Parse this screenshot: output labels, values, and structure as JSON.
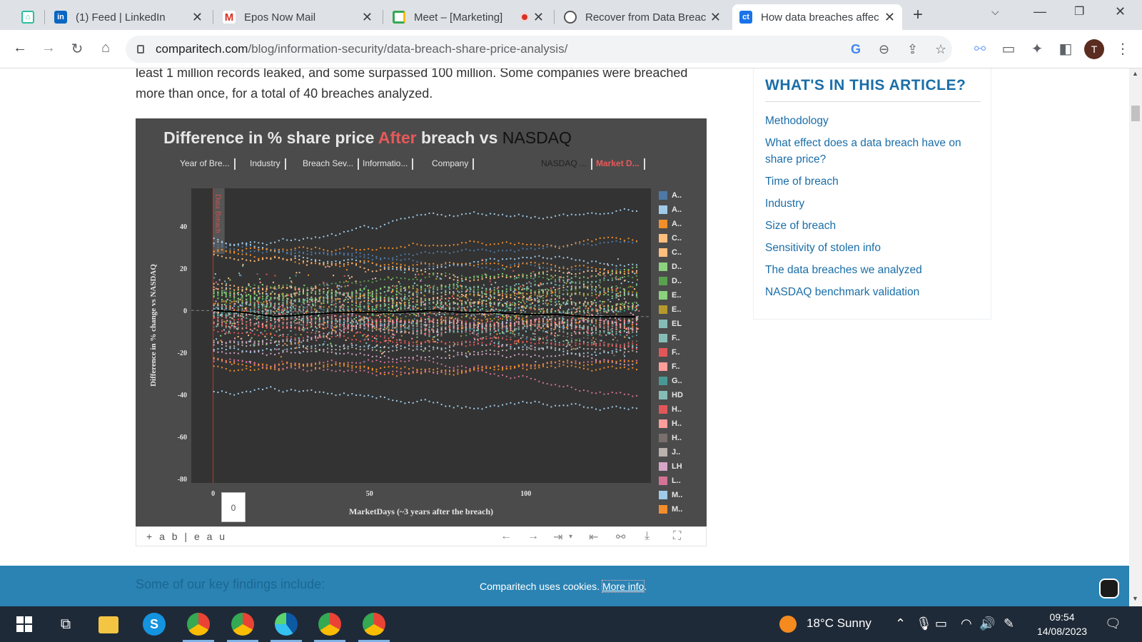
{
  "browser": {
    "tabs": [
      {
        "title": "",
        "icon": "home-app-icon"
      },
      {
        "title": "(1) Feed | LinkedIn",
        "icon": "linkedin-icon"
      },
      {
        "title": "Epos Now Mail",
        "icon": "gmail-icon"
      },
      {
        "title": "Meet – [Marketing]",
        "icon": "meet-icon",
        "recording": true
      },
      {
        "title": "Recover from Data Breac",
        "icon": "openai-icon"
      },
      {
        "title": "How data breaches affec",
        "icon": "ct-icon",
        "active": true
      }
    ],
    "new_tab": "+",
    "address": {
      "domain": "comparitech.com",
      "path": "/blog/information-security/data-breach-share-price-analysis/"
    },
    "profile_initial": "T"
  },
  "article": {
    "intro": "least 1 million records leaked, and some surpassed 100 million. Some companies were breached more than once, for a total of 40 breaches analyzed."
  },
  "viz": {
    "title_part1": "Difference in % share price",
    "title_after": "After",
    "title_part2": "breach  vs",
    "title_nasdaq": "NASDAQ",
    "filters": [
      "Year of Bre...",
      "Industry",
      "Breach Sev...",
      "Informatio...",
      "Company",
      "NASDAQ ...",
      "Market D..."
    ],
    "ylabel": "Difference in % change vs NASDAQ",
    "xlabel": "MarketDays (~3 years after the breach)",
    "breach_label": "Data Breach",
    "slider_value": "0",
    "brand": "+ a b | e a u"
  },
  "chart_data": {
    "type": "scatter",
    "title": "Difference in % share price After breach vs NASDAQ",
    "xlabel": "MarketDays (~3 years after the breach)",
    "ylabel": "Difference in % change vs NASDAQ",
    "xlim": [
      -7,
      140
    ],
    "ylim": [
      -82,
      58
    ],
    "x_ticks": [
      0,
      50,
      100
    ],
    "y_ticks": [
      40,
      20,
      0,
      -20,
      -40,
      -60,
      -80
    ],
    "annotation": {
      "x": 0,
      "label": "Data Breach"
    },
    "average_line": {
      "x": [
        0,
        10,
        20,
        30,
        40,
        50,
        60,
        70,
        80,
        90,
        100,
        110,
        120,
        130,
        135
      ],
      "y": [
        0,
        -1,
        -3,
        -2,
        -1,
        -1,
        -1,
        0,
        -1,
        -1,
        -2,
        -2,
        -3,
        -3,
        -3
      ]
    },
    "legend": [
      {
        "label": "A..",
        "color": "#4e79a7"
      },
      {
        "label": "A..",
        "color": "#a0cbe8"
      },
      {
        "label": "A..",
        "color": "#f28e2b"
      },
      {
        "label": "C..",
        "color": "#ffbe7d"
      },
      {
        "label": "C..",
        "color": "#ffbe7d"
      },
      {
        "label": "D..",
        "color": "#8cd17d"
      },
      {
        "label": "D..",
        "color": "#59a14f"
      },
      {
        "label": "E..",
        "color": "#8cd17d"
      },
      {
        "label": "E..",
        "color": "#b6992d"
      },
      {
        "label": "EL",
        "color": "#86bcb6"
      },
      {
        "label": "F..",
        "color": "#86bcb6"
      },
      {
        "label": "F..",
        "color": "#e15759"
      },
      {
        "label": "F..",
        "color": "#ff9d9a"
      },
      {
        "label": "G..",
        "color": "#499894"
      },
      {
        "label": "HD",
        "color": "#86bcb6"
      },
      {
        "label": "H..",
        "color": "#e15759"
      },
      {
        "label": "H..",
        "color": "#ff9d9a"
      },
      {
        "label": "H..",
        "color": "#79706e"
      },
      {
        "label": "J..",
        "color": "#bab0ac"
      },
      {
        "label": "LH",
        "color": "#d4a6c8"
      },
      {
        "label": "L..",
        "color": "#d37295"
      },
      {
        "label": "M..",
        "color": "#a0cbe8"
      },
      {
        "label": "M..",
        "color": "#f28e2b"
      }
    ]
  },
  "sidebar": {
    "heading": "WHAT'S IN THIS ARTICLE?",
    "links": [
      "Methodology",
      "What effect does a data breach have on share price?",
      "Time of breach",
      "Industry",
      "Size of breach",
      "Sensitivity of stolen info",
      "The data breaches we analyzed",
      "NASDAQ benchmark validation"
    ]
  },
  "cookie": {
    "behind_text": "Some of our key findings include:",
    "message": "Comparitech uses cookies.",
    "link": "More info"
  },
  "taskbar": {
    "weather": "18°C  Sunny",
    "time": "09:54",
    "date": "14/08/2023"
  },
  "colors": {
    "accent_link": "#1a6ea8",
    "cookie_bar": "#2a83b3",
    "viz_bg": "#4b4b4b",
    "after_red": "#e8595a"
  }
}
